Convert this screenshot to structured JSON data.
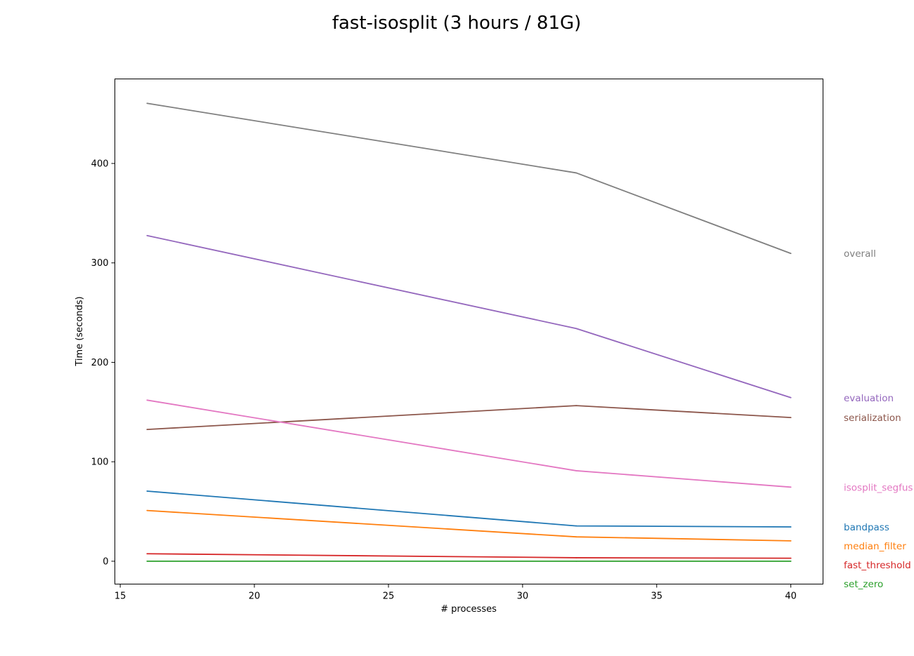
{
  "chart_data": {
    "type": "line",
    "title": "fast-isosplit (3 hours / 81G)",
    "xlabel": "# processes",
    "ylabel": "Time (seconds)",
    "xlim": [
      14.8,
      41.2
    ],
    "ylim": [
      -23,
      485
    ],
    "xticks": [
      15,
      20,
      25,
      30,
      35,
      40
    ],
    "yticks": [
      0,
      100,
      200,
      300,
      400
    ],
    "grid": false,
    "legend_placement": "right (direct labels)",
    "x": [
      16,
      32,
      40
    ],
    "series": [
      {
        "name": "overall",
        "color": "#7f7f7f",
        "values": [
          460.5,
          390.5,
          309.5
        ]
      },
      {
        "name": "evaluation",
        "color": "#9467bd",
        "values": [
          327.5,
          234.0,
          164.5
        ]
      },
      {
        "name": "serialization",
        "color": "#8c564b",
        "values": [
          132.5,
          156.5,
          144.5
        ]
      },
      {
        "name": "isosplit_segfus",
        "color": "#e377c2",
        "values": [
          162.0,
          91.0,
          74.5
        ]
      },
      {
        "name": "bandpass",
        "color": "#1f77b4",
        "values": [
          70.5,
          35.5,
          34.5
        ]
      },
      {
        "name": "median_filter",
        "color": "#ff7f0e",
        "values": [
          51.0,
          24.5,
          20.5
        ]
      },
      {
        "name": "fast_threshold",
        "color": "#d62728",
        "values": [
          7.5,
          3.5,
          3.0
        ]
      },
      {
        "name": "set_zero",
        "color": "#2ca02c",
        "values": [
          0.0,
          0.0,
          0.0
        ]
      }
    ]
  }
}
